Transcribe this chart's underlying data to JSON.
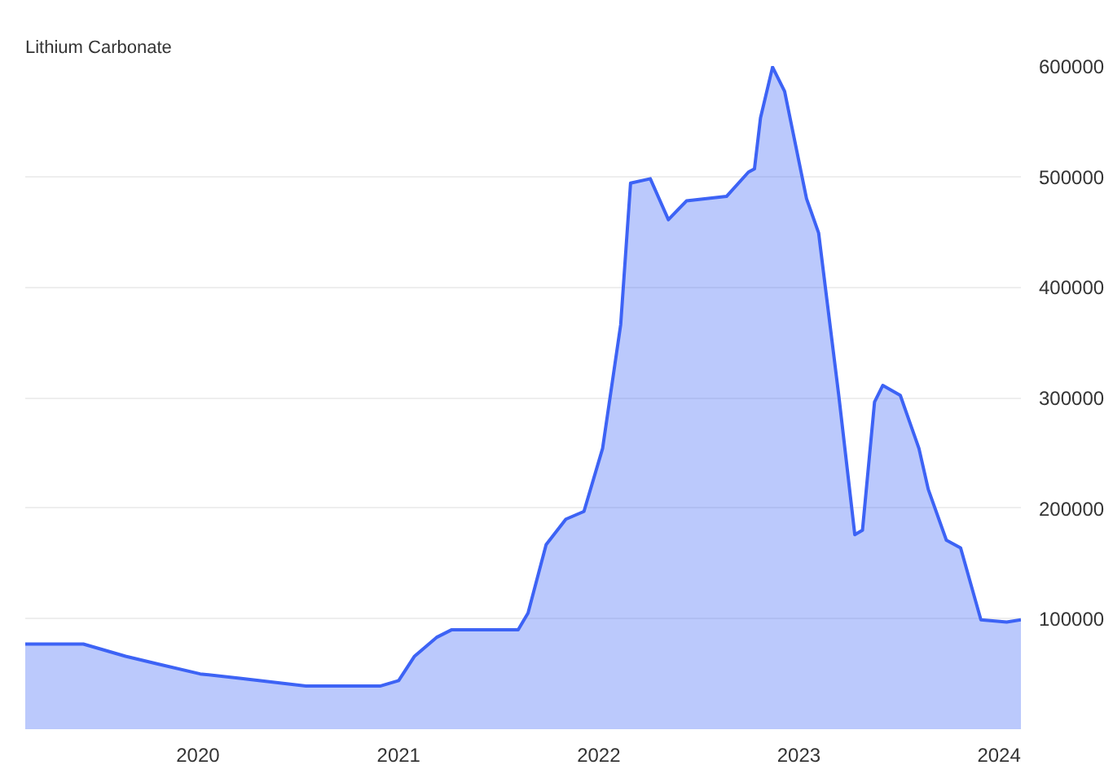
{
  "chart_data": {
    "type": "area",
    "title": "Lithium Carbonate",
    "x": [
      "2019-02-20",
      "2019-06-06",
      "2019-08-22",
      "2019-10-20",
      "2020-01-05",
      "2020-03-17",
      "2020-07-16",
      "2020-09-16",
      "2020-11-28",
      "2021-01-01",
      "2021-01-30",
      "2021-03-11",
      "2021-04-08",
      "2021-06-13",
      "2021-08-07",
      "2021-08-25",
      "2021-09-27",
      "2021-11-02",
      "2021-12-05",
      "2022-01-08",
      "2022-02-10",
      "2022-02-28",
      "2022-04-05",
      "2022-05-08",
      "2022-06-10",
      "2022-08-22",
      "2022-10-01",
      "2022-10-12",
      "2022-10-23",
      "2022-11-14",
      "2022-12-06",
      "2023-01-15",
      "2023-02-06",
      "2023-03-15",
      "2023-04-13",
      "2023-04-27",
      "2023-05-19",
      "2023-06-03",
      "2023-07-05",
      "2023-08-08",
      "2023-08-25",
      "2023-09-27",
      "2023-10-23",
      "2023-11-29",
      "2024-01-15",
      "2024-02-10"
    ],
    "series": [
      {
        "color": "#3d63f5",
        "values": [
          77000,
          77000,
          66000,
          59000,
          50000,
          46000,
          39000,
          39000,
          39000,
          44000,
          66000,
          83000,
          90000,
          90000,
          90000,
          105000,
          167000,
          190000,
          197000,
          254000,
          366000,
          494000,
          498000,
          461000,
          478000,
          482000,
          504000,
          507000,
          553000,
          599000,
          577000,
          480000,
          449000,
          301000,
          176000,
          180000,
          296000,
          311000,
          302000,
          254000,
          217000,
          171000,
          164000,
          99000,
          97000,
          99000
        ]
      }
    ],
    "xlim": [
      "2019-02-20",
      "2024-02-10"
    ],
    "xticks": [
      {
        "value": "2020-01-01",
        "label": "2020"
      },
      {
        "value": "2021-01-01",
        "label": "2021"
      },
      {
        "value": "2022-01-01",
        "label": "2022"
      },
      {
        "value": "2023-01-01",
        "label": "2023"
      },
      {
        "value": "2024-01-01",
        "label": "2024"
      }
    ],
    "ylim": [
      0,
      600000
    ],
    "yticks": [
      100000,
      200000,
      300000,
      400000,
      500000,
      600000
    ],
    "grid": "y"
  }
}
